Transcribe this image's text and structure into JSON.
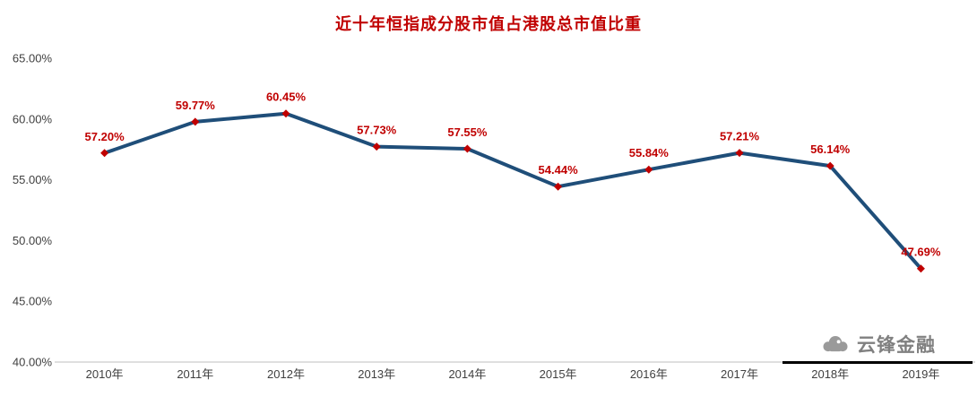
{
  "page": {
    "title": "近十年恒指成分股市值占港股总市值比重"
  },
  "watermark": {
    "brand": "云锋金融",
    "logo": "cloud-logo-icon"
  },
  "chart_data": {
    "type": "line",
    "title": "近十年恒指成分股市值占港股总市值比重",
    "categories": [
      "2010年",
      "2011年",
      "2012年",
      "2013年",
      "2014年",
      "2015年",
      "2016年",
      "2017年",
      "2018年",
      "2019年"
    ],
    "values": [
      57.2,
      59.77,
      60.45,
      57.73,
      57.55,
      54.44,
      55.84,
      57.21,
      56.14,
      47.69
    ],
    "data_labels": [
      "57.20%",
      "59.77%",
      "60.45%",
      "57.73%",
      "57.55%",
      "54.44%",
      "55.84%",
      "57.21%",
      "56.14%",
      "47.69%"
    ],
    "xlabel": "",
    "ylabel": "",
    "ylim": [
      40,
      65
    ],
    "ytick_step": 5,
    "ytick_labels": [
      "40.00%",
      "45.00%",
      "50.00%",
      "55.00%",
      "60.00%",
      "65.00%"
    ],
    "grid": false,
    "legend": "none",
    "marker_shape": "diamond",
    "colors": {
      "line": "#1F4E79",
      "marker": "#C00000",
      "data_label": "#C00000",
      "title": "#C00000",
      "axis_text": "#404040",
      "axis_line": "#BFBFBF",
      "watermark_text": "#808080",
      "watermark_rule": "#000000"
    }
  }
}
